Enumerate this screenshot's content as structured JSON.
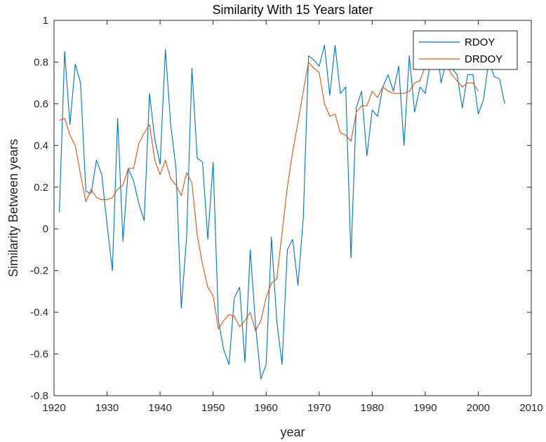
{
  "chart_data": {
    "type": "line",
    "title": "Similarity With 15 Years later",
    "xlabel": "year",
    "ylabel": "Similarity Between years",
    "xlim": [
      1920,
      2010
    ],
    "ylim": [
      -0.8,
      1
    ],
    "xticks": [
      1920,
      1930,
      1940,
      1950,
      1960,
      1970,
      1980,
      1990,
      2000,
      2010
    ],
    "yticks": [
      -0.8,
      -0.6,
      -0.4,
      -0.2,
      0,
      0.2,
      0.4,
      0.6,
      0.8,
      1
    ],
    "ytick_labels": [
      "-0.8",
      "-0.6",
      "-0.4",
      "-0.2",
      "0",
      "0.2",
      "0.4",
      "0.6",
      "0.8",
      "1"
    ],
    "grid": false,
    "legend_position": "top-right",
    "series": [
      {
        "name": "RDOY",
        "color": "#0072BD",
        "x": [
          1921,
          1922,
          1923,
          1924,
          1925,
          1926,
          1927,
          1928,
          1929,
          1930,
          1931,
          1932,
          1933,
          1934,
          1935,
          1936,
          1937,
          1938,
          1939,
          1940,
          1941,
          1942,
          1943,
          1944,
          1945,
          1946,
          1947,
          1948,
          1949,
          1950,
          1951,
          1952,
          1953,
          1954,
          1955,
          1956,
          1957,
          1958,
          1959,
          1960,
          1961,
          1962,
          1963,
          1964,
          1965,
          1966,
          1967,
          1968,
          1969,
          1970,
          1971,
          1972,
          1973,
          1974,
          1975,
          1976,
          1977,
          1978,
          1979,
          1980,
          1981,
          1982,
          1983,
          1984,
          1985,
          1986,
          1987,
          1988,
          1989,
          1990,
          1991,
          1992,
          1993,
          1994,
          1995,
          1996,
          1997,
          1998,
          1999,
          2000,
          2001,
          2002,
          2003,
          2004,
          2005
        ],
        "y": [
          0.08,
          0.85,
          0.5,
          0.79,
          0.7,
          0.18,
          0.17,
          0.33,
          0.26,
          0.02,
          -0.2,
          0.53,
          -0.06,
          0.29,
          0.23,
          0.12,
          0.04,
          0.65,
          0.43,
          0.31,
          0.86,
          0.5,
          0.29,
          -0.38,
          -0.04,
          0.77,
          0.34,
          0.32,
          -0.05,
          0.32,
          -0.44,
          -0.58,
          -0.65,
          -0.33,
          -0.28,
          -0.64,
          -0.1,
          -0.46,
          -0.72,
          -0.65,
          -0.04,
          -0.44,
          -0.65,
          -0.1,
          -0.05,
          -0.27,
          0.05,
          0.83,
          0.81,
          0.78,
          0.88,
          0.64,
          0.88,
          0.65,
          0.68,
          -0.14,
          0.58,
          0.66,
          0.35,
          0.57,
          0.54,
          0.68,
          0.74,
          0.66,
          0.78,
          0.4,
          0.83,
          0.56,
          0.68,
          0.65,
          0.8,
          0.92,
          0.7,
          0.81,
          0.77,
          0.74,
          0.58,
          0.74,
          0.74,
          0.55,
          0.62,
          0.81,
          0.73,
          0.72,
          0.6
        ]
      },
      {
        "name": "DRDOY",
        "color": "#D95319",
        "x": [
          1921,
          1922,
          1923,
          1924,
          1925,
          1926,
          1927,
          1928,
          1929,
          1930,
          1931,
          1932,
          1933,
          1934,
          1935,
          1936,
          1937,
          1938,
          1939,
          1940,
          1941,
          1942,
          1943,
          1944,
          1945,
          1946,
          1947,
          1948,
          1949,
          1950,
          1951,
          1952,
          1953,
          1954,
          1955,
          1956,
          1957,
          1958,
          1959,
          1960,
          1961,
          1962,
          1963,
          1964,
          1965,
          1966,
          1967,
          1968,
          1969,
          1970,
          1971,
          1972,
          1973,
          1974,
          1975,
          1976,
          1977,
          1978,
          1979,
          1980,
          1981,
          1982,
          1983,
          1984,
          1985,
          1986,
          1987,
          1988,
          1989,
          1990,
          1991,
          1992,
          1993,
          1994,
          1995,
          1996,
          1997,
          1998,
          1999,
          2000
        ],
        "y": [
          0.52,
          0.53,
          0.45,
          0.4,
          0.26,
          0.13,
          0.19,
          0.15,
          0.14,
          0.14,
          0.15,
          0.19,
          0.21,
          0.29,
          0.29,
          0.41,
          0.46,
          0.5,
          0.33,
          0.26,
          0.33,
          0.24,
          0.21,
          0.16,
          0.27,
          0.22,
          -0.03,
          -0.17,
          -0.28,
          -0.32,
          -0.48,
          -0.44,
          -0.41,
          -0.42,
          -0.47,
          -0.44,
          -0.4,
          -0.49,
          -0.44,
          -0.33,
          -0.26,
          -0.24,
          -0.02,
          0.2,
          0.37,
          0.51,
          0.66,
          0.8,
          0.77,
          0.75,
          0.6,
          0.54,
          0.55,
          0.46,
          0.45,
          0.42,
          0.56,
          0.59,
          0.59,
          0.66,
          0.63,
          0.68,
          0.66,
          0.65,
          0.65,
          0.65,
          0.66,
          0.7,
          0.71,
          0.78,
          0.82,
          0.82,
          0.8,
          0.79,
          0.74,
          0.71,
          0.68,
          0.7,
          0.7,
          0.66
        ]
      }
    ]
  }
}
